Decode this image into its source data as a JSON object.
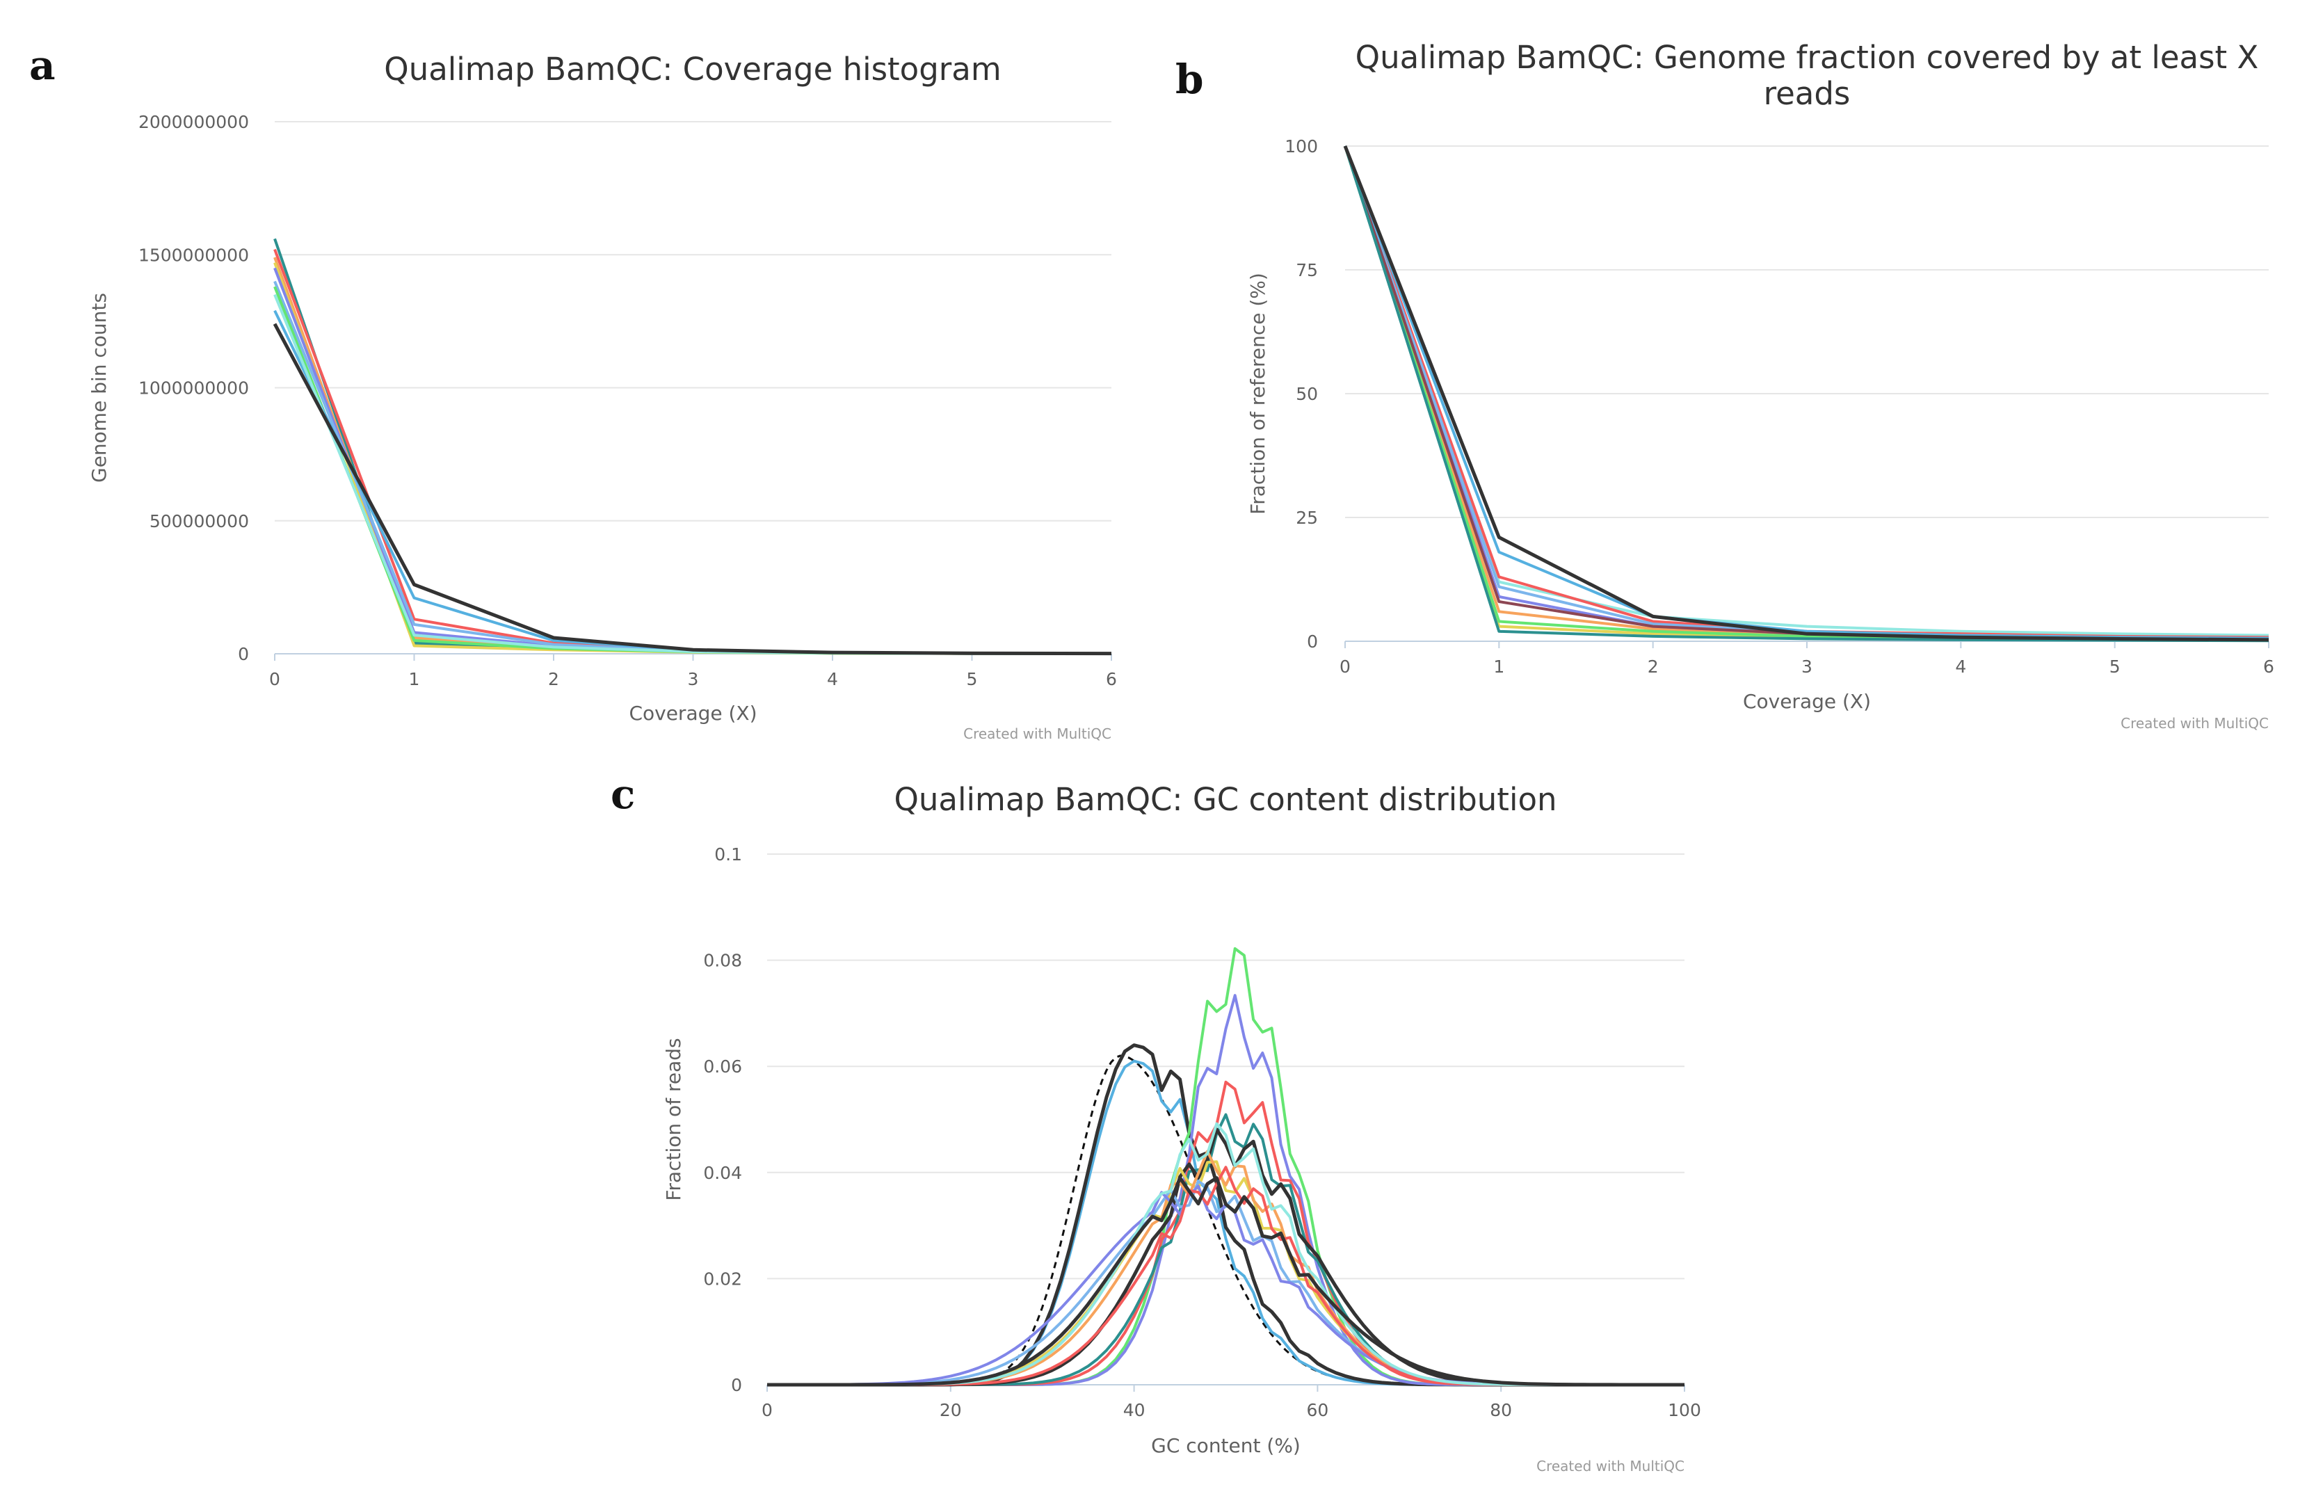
{
  "panels": {
    "a": "a",
    "b": "b",
    "c": "c"
  },
  "chart_data": [
    {
      "id": "a",
      "type": "line",
      "title": "Qualimap BamQC: Coverage histogram",
      "xlabel": "Coverage (X)",
      "ylabel": "Genome bin counts",
      "credit": "Created with MultiQC",
      "xlim": [
        0,
        6
      ],
      "ylim": [
        0,
        2000000000
      ],
      "xticks": [
        0,
        1,
        2,
        3,
        4,
        5,
        6
      ],
      "yticks": [
        0,
        500000000,
        1000000000,
        1500000000,
        2000000000
      ],
      "ytick_labels": [
        "0",
        "500000000",
        "1000000000",
        "1500000000",
        "2000000000"
      ],
      "x": [
        0,
        1,
        2,
        3,
        4,
        5,
        6
      ],
      "series": [
        {
          "color": "#2b908f",
          "values": [
            1560000000,
            40000000,
            20000000,
            8000000,
            3000000,
            1000000,
            500000
          ]
        },
        {
          "color": "#f45b5b",
          "values": [
            1520000000,
            130000000,
            40000000,
            10000000,
            4000000,
            1500000,
            500000
          ]
        },
        {
          "color": "#f7a35c",
          "values": [
            1490000000,
            60000000,
            25000000,
            8000000,
            3000000,
            1000000,
            500000
          ]
        },
        {
          "color": "#e4d354",
          "values": [
            1470000000,
            30000000,
            15000000,
            6000000,
            2000000,
            1000000,
            500000
          ]
        },
        {
          "color": "#8085e9",
          "values": [
            1450000000,
            80000000,
            30000000,
            9000000,
            3000000,
            1000000,
            500000
          ]
        },
        {
          "color": "#7cb5ec",
          "values": [
            1400000000,
            110000000,
            35000000,
            10000000,
            4000000,
            1500000,
            500000
          ]
        },
        {
          "color": "#64e572",
          "values": [
            1380000000,
            50000000,
            20000000,
            7000000,
            2000000,
            1000000,
            500000
          ]
        },
        {
          "color": "#55b0e0",
          "values": [
            1290000000,
            210000000,
            50000000,
            15000000,
            5000000,
            2000000,
            1000000
          ]
        },
        {
          "color": "#91e8e1",
          "values": [
            1350000000,
            70000000,
            25000000,
            8000000,
            3000000,
            1000000,
            500000
          ]
        },
        {
          "color": "#333333",
          "values": [
            1240000000,
            260000000,
            60000000,
            15000000,
            5000000,
            2000000,
            1000000
          ]
        }
      ]
    },
    {
      "id": "b",
      "type": "line",
      "title": "Qualimap BamQC: Genome fraction covered by at least X reads",
      "title_lines": [
        "Qualimap BamQC: Genome fraction covered by at least X",
        "reads"
      ],
      "xlabel": "Coverage (X)",
      "ylabel": "Fraction of reference (%)",
      "credit": "Created with MultiQC",
      "xlim": [
        0,
        6
      ],
      "ylim": [
        0,
        100
      ],
      "xticks": [
        0,
        1,
        2,
        3,
        4,
        5,
        6
      ],
      "yticks": [
        0,
        25,
        50,
        75,
        100
      ],
      "ytick_labels": [
        "0",
        "25",
        "50",
        "75",
        "100"
      ],
      "x": [
        0,
        1,
        2,
        3,
        4,
        5,
        6
      ],
      "series": [
        {
          "color": "#91e8e1",
          "values": [
            100,
            12,
            5,
            3,
            2,
            1.5,
            1.2
          ]
        },
        {
          "color": "#f45b5b",
          "values": [
            100,
            13,
            4,
            2,
            1.5,
            1,
            0.8
          ]
        },
        {
          "color": "#f7a35c",
          "values": [
            100,
            6,
            2.5,
            1.2,
            0.8,
            0.5,
            0.4
          ]
        },
        {
          "color": "#e4d354",
          "values": [
            100,
            3,
            1.5,
            0.8,
            0.5,
            0.3,
            0.2
          ]
        },
        {
          "color": "#8085e9",
          "values": [
            100,
            9,
            3,
            1.5,
            1,
            0.7,
            0.5
          ]
        },
        {
          "color": "#7cb5ec",
          "values": [
            100,
            11,
            3.5,
            1.8,
            1.2,
            0.8,
            0.6
          ]
        },
        {
          "color": "#64e572",
          "values": [
            100,
            4,
            2,
            1,
            0.6,
            0.4,
            0.3
          ]
        },
        {
          "color": "#8d4653",
          "values": [
            100,
            8,
            3,
            1.5,
            1,
            0.7,
            0.5
          ]
        },
        {
          "color": "#2b908f",
          "values": [
            100,
            2,
            1,
            0.5,
            0.3,
            0.2,
            0.1
          ]
        },
        {
          "color": "#55b0e0",
          "values": [
            100,
            18,
            5,
            2,
            1.2,
            0.8,
            0.6
          ]
        },
        {
          "color": "#333333",
          "values": [
            100,
            21,
            5,
            1.5,
            0.8,
            0.5,
            0.3
          ]
        }
      ]
    },
    {
      "id": "c",
      "type": "line",
      "title": "Qualimap BamQC: GC content distribution",
      "xlabel": "GC content (%)",
      "ylabel": "Fraction of reads",
      "credit": "Created with MultiQC",
      "xlim": [
        0,
        100
      ],
      "ylim": [
        0,
        0.1
      ],
      "xticks": [
        0,
        20,
        40,
        60,
        80,
        100
      ],
      "yticks": [
        0,
        0.02,
        0.04,
        0.06,
        0.08,
        0.1
      ],
      "ytick_labels": [
        "0",
        "0.02",
        "0.04",
        "0.06",
        "0.08",
        "0.1"
      ],
      "reference": {
        "name": "reference",
        "style": "dashed",
        "mu": 38.5,
        "sigma_left": 5,
        "sigma_right": 8.5,
        "peak": 0.062
      },
      "series": [
        {
          "color": "#55b0e0",
          "mu": 40,
          "sigma": 5.2,
          "peak": 0.061,
          "sigma_right": 8
        },
        {
          "color": "#333333",
          "mu": 40,
          "sigma": 5.2,
          "peak": 0.064,
          "sigma_right": 8.5
        },
        {
          "color": "#64e572",
          "mu": 51,
          "sigma": 5.5,
          "peak": 0.078,
          "sigma_right": 6
        },
        {
          "color": "#8085e9",
          "mu": 51,
          "sigma": 5.5,
          "peak": 0.068,
          "sigma_right": 6
        },
        {
          "color": "#f45b5b",
          "mu": 51,
          "sigma": 6.5,
          "peak": 0.054,
          "sigma_right": 7
        },
        {
          "color": "#2b908f",
          "mu": 51,
          "sigma": 7,
          "peak": 0.048,
          "sigma_right": 7.5
        },
        {
          "color": "#333333",
          "mu": 50,
          "sigma": 8,
          "peak": 0.045,
          "sigma_right": 9
        },
        {
          "color": "#e4d354",
          "mu": 48,
          "sigma": 9,
          "peak": 0.04,
          "sigma_right": 9
        },
        {
          "color": "#f7a35c",
          "mu": 49,
          "sigma": 9,
          "peak": 0.041,
          "sigma_right": 8.5
        },
        {
          "color": "#7cb5ec",
          "mu": 47,
          "sigma": 10,
          "peak": 0.036,
          "sigma_right": 9.5
        },
        {
          "color": "#8085e9",
          "mu": 46,
          "sigma": 10.5,
          "peak": 0.035,
          "sigma_right": 10
        },
        {
          "color": "#f45b5b",
          "mu": 50,
          "sigma": 8.5,
          "peak": 0.038,
          "sigma_right": 8
        },
        {
          "color": "#91e8e1",
          "mu": 49,
          "sigma": 9,
          "peak": 0.046,
          "sigma_right": 8.5
        },
        {
          "color": "#333333",
          "mu": 47,
          "sigma": 9,
          "peak": 0.037,
          "sigma_right": 11
        }
      ]
    }
  ]
}
